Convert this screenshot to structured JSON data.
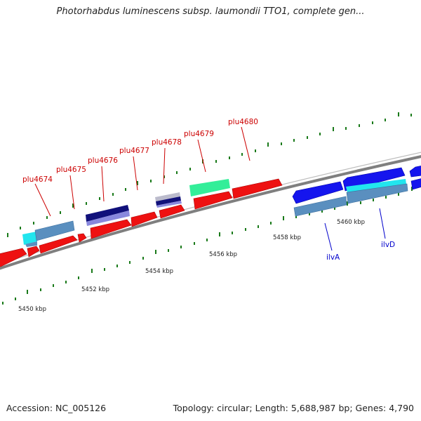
{
  "title": "Photorhabdus luminescens subsp. laumondii TTO1, complete gen...",
  "footer": {
    "accession": "Accession: NC_005126",
    "summary": "Topology: circular; Length: 5,688,987 bp; Genes: 4,790"
  },
  "colors": {
    "tick": "#1a7a1a",
    "backbone": "#7f7f7f",
    "label_red": "#cc0000",
    "label_blue": "#0000cc"
  },
  "scale_labels": [
    "5450 kbp",
    "5452 kbp",
    "5454 kbp",
    "5456 kbp",
    "5458 kbp",
    "5460 kbp"
  ],
  "gene_labels_red": [
    "plu4674",
    "plu4675",
    "plu4676",
    "plu4677",
    "plu4678",
    "plu4679",
    "plu4680"
  ],
  "gene_labels_blue": [
    "ilvA",
    "ilvD"
  ]
}
